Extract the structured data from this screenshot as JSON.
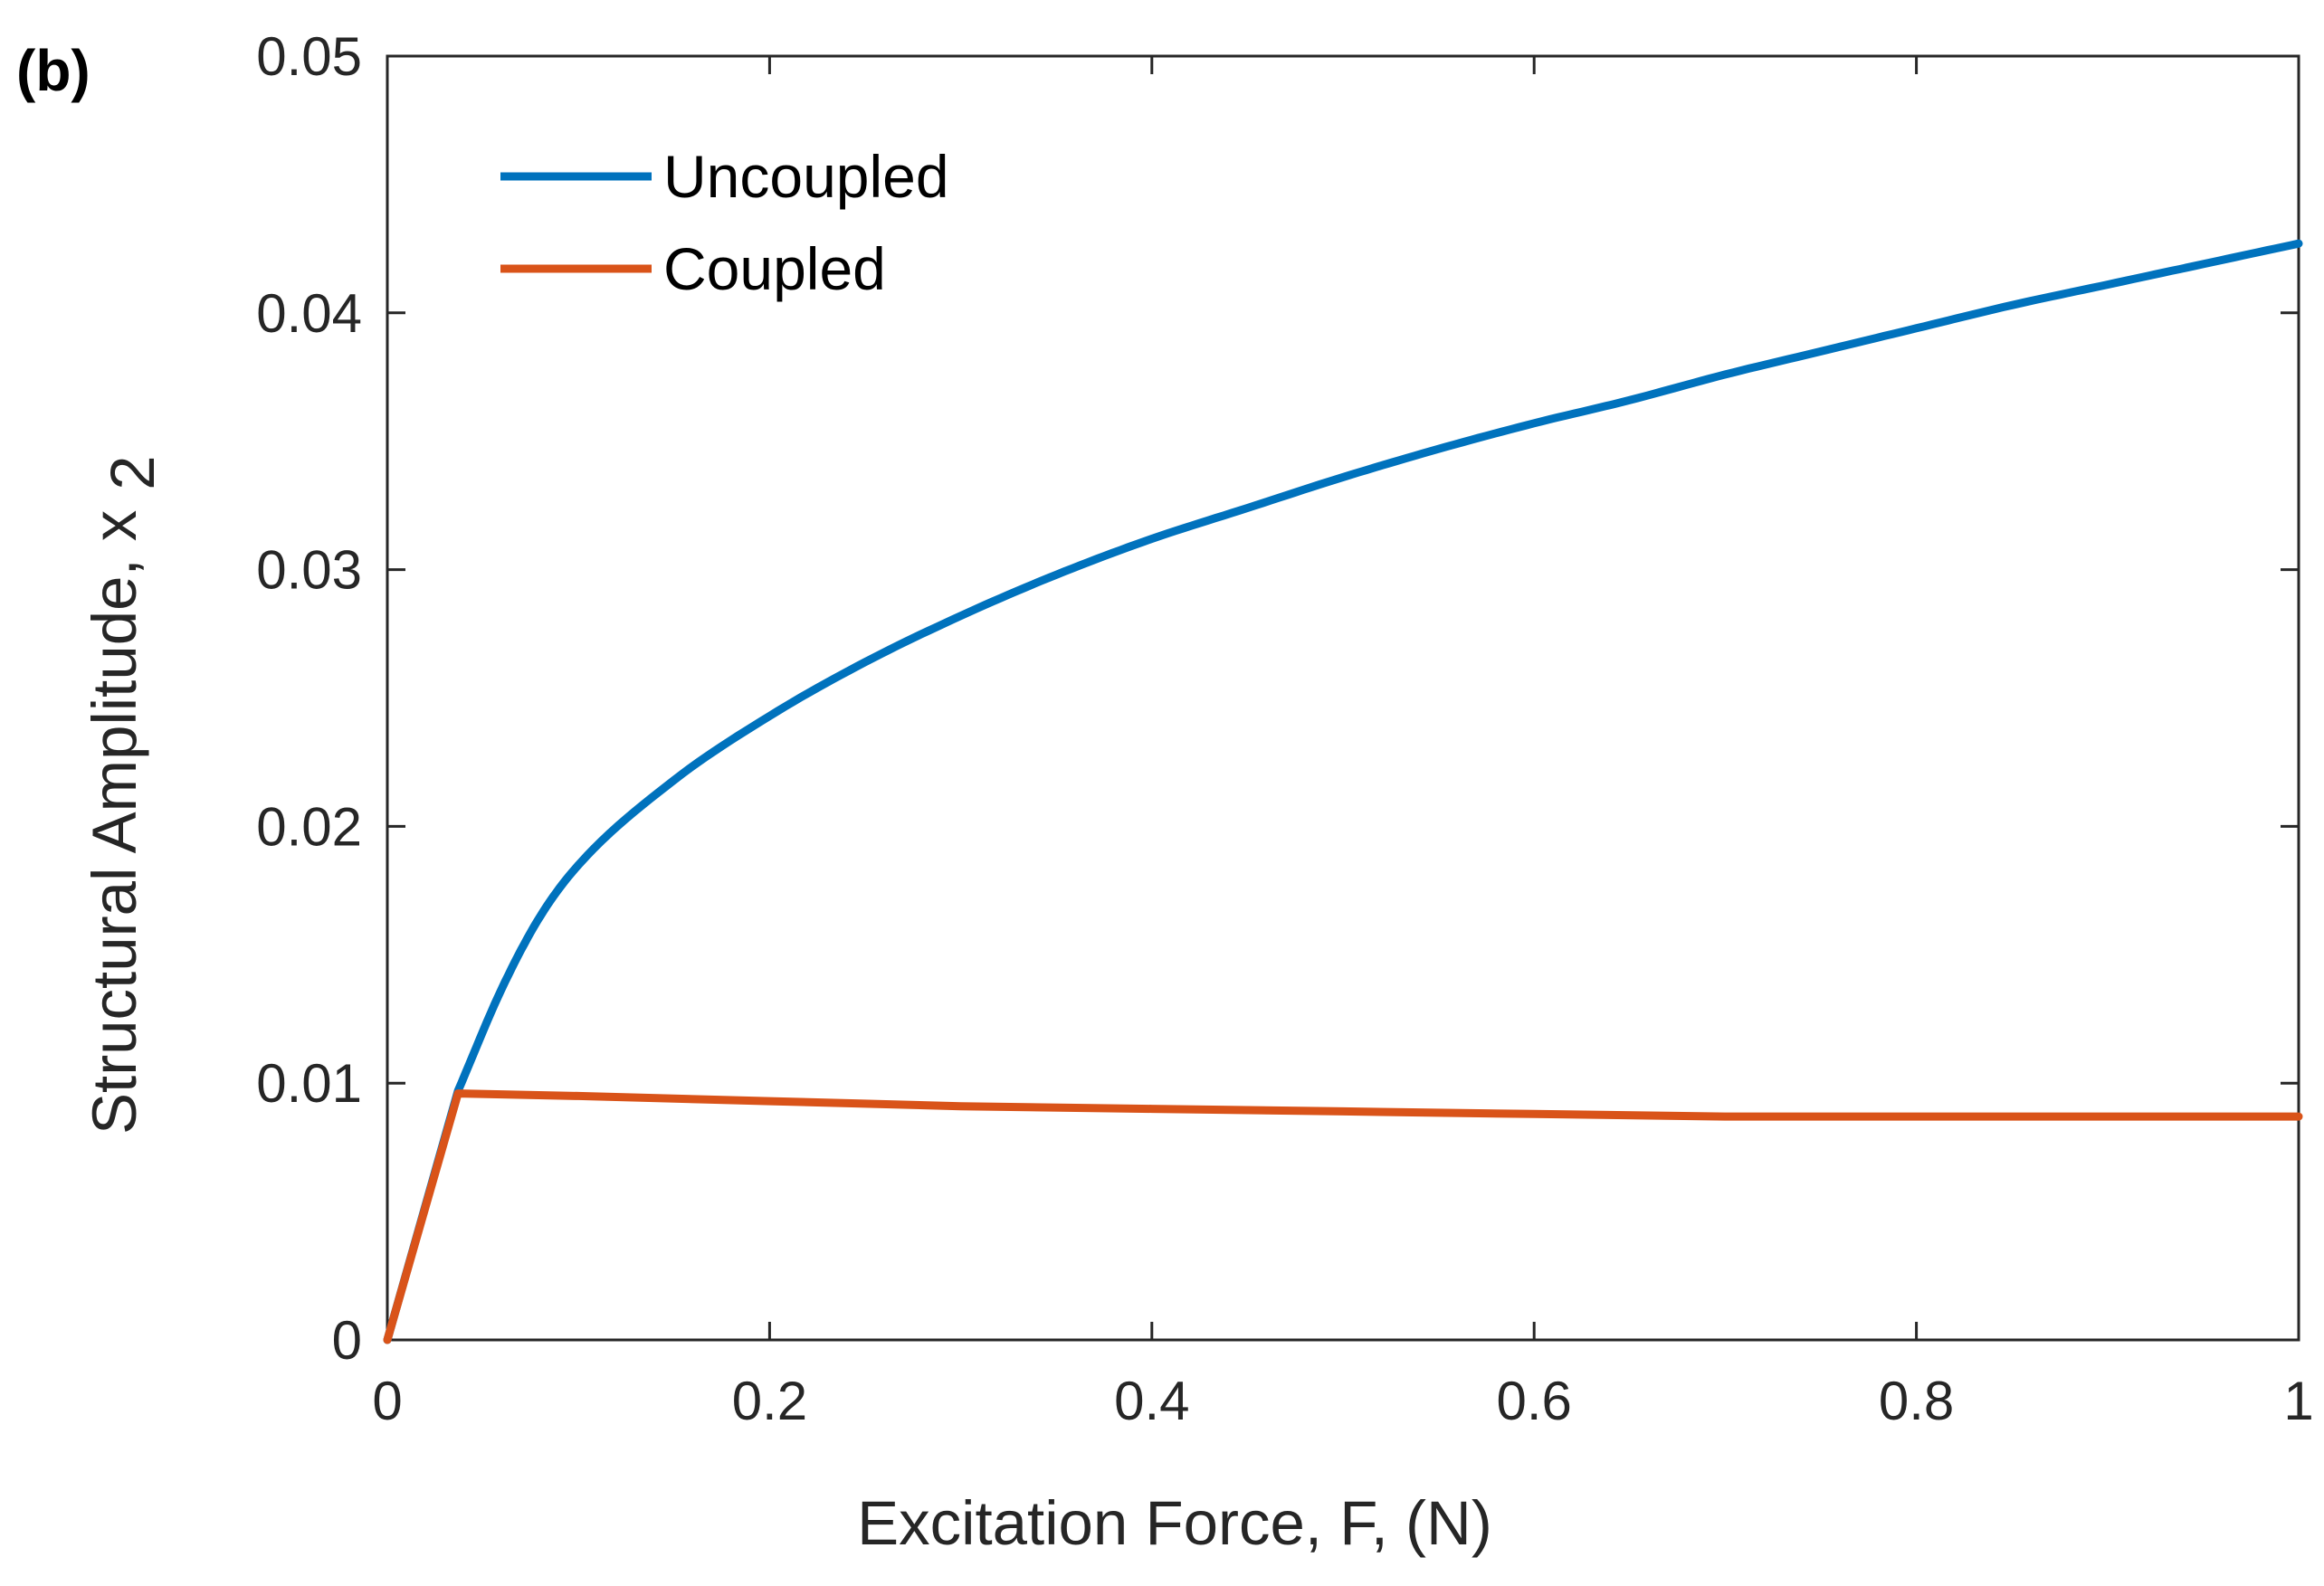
{
  "chart_data": {
    "type": "line",
    "panel_label": "(b)",
    "xlabel": "Excitation Force, F, (N)",
    "ylabel": "Structural Amplitude, x",
    "ylabel_sub": "2",
    "xlim": [
      0,
      1
    ],
    "ylim": [
      0,
      0.05
    ],
    "xticks": [
      0,
      0.2,
      0.4,
      0.6,
      0.8,
      1
    ],
    "xtick_labels": [
      "0",
      "0.2",
      "0.4",
      "0.6",
      "0.8",
      "1"
    ],
    "yticks": [
      0,
      0.01,
      0.02,
      0.03,
      0.04,
      0.05
    ],
    "ytick_labels": [
      "0",
      "0.01",
      "0.02",
      "0.03",
      "0.04",
      "0.05"
    ],
    "grid": false,
    "legend_position": "top-left",
    "series": [
      {
        "name": "Uncoupled",
        "color": "#0072BD",
        "x": [
          0,
          0.037,
          0.06,
          0.08,
          0.1,
          0.15,
          0.2,
          0.25,
          0.3,
          0.35,
          0.4,
          0.45,
          0.5,
          0.55,
          0.6,
          0.65,
          0.7,
          0.75,
          0.8,
          0.85,
          0.9,
          0.95,
          1.0
        ],
        "y": [
          0,
          0.0097,
          0.0137,
          0.0165,
          0.0185,
          0.0218,
          0.0243,
          0.0264,
          0.0282,
          0.0298,
          0.0312,
          0.0324,
          0.0336,
          0.0347,
          0.0357,
          0.0366,
          0.0376,
          0.0385,
          0.0394,
          0.0403,
          0.0411,
          0.0419,
          0.0427
        ]
      },
      {
        "name": "Coupled",
        "color": "#D95319",
        "x": [
          0,
          0.037,
          0.1,
          0.2,
          0.3,
          0.4,
          0.5,
          0.6,
          0.7,
          0.8,
          0.9,
          1.0
        ],
        "y": [
          0,
          0.0096,
          0.0095,
          0.0093,
          0.0091,
          0.009,
          0.0089,
          0.0088,
          0.0087,
          0.0087,
          0.0087,
          0.0087
        ]
      }
    ]
  }
}
